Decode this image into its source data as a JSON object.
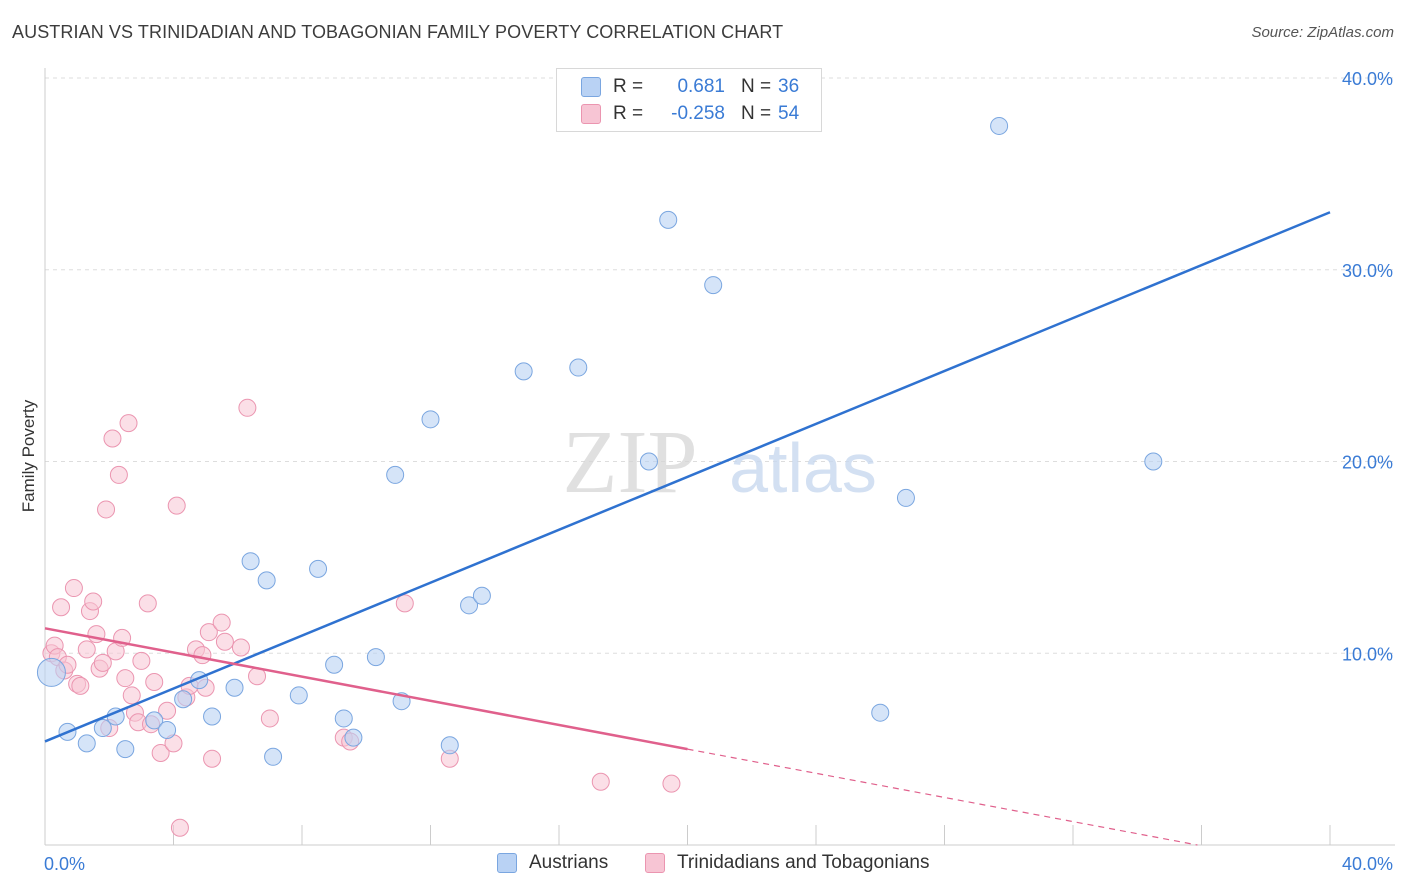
{
  "title": "AUSTRIAN VS TRINIDADIAN AND TOBAGONIAN FAMILY POVERTY CORRELATION CHART",
  "source": "Source: ZipAtlas.com",
  "watermark": {
    "zip": "ZIP",
    "atlas": "atlas"
  },
  "legend": {
    "austrians": {
      "r_label": "R =",
      "r_value": "0.681",
      "n_label": "N =",
      "n_value": "36"
    },
    "trinidadians": {
      "r_label": "R =",
      "r_value": "-0.258",
      "n_label": "N =",
      "n_value": "54"
    }
  },
  "bottom_legend": {
    "austrians": "Austrians",
    "trinidadians": "Trinidadians and Tobagonians"
  },
  "colors": {
    "austrians_fill": "#b9d2f4",
    "austrians_stroke": "#7aa6e0",
    "austrians_line": "#2f72d0",
    "trinidadians_fill": "#f7c5d4",
    "trinidadians_stroke": "#eb95b0",
    "trinidadians_line": "#e0608c",
    "axis_label": "#3a7bd5",
    "grid": "#dddddd"
  },
  "chart_data": {
    "type": "scatter",
    "title": "AUSTRIAN VS TRINIDADIAN AND TOBAGONIAN FAMILY POVERTY CORRELATION CHART",
    "xlabel": "",
    "ylabel": "Family Poverty",
    "xlim": [
      0,
      40
    ],
    "ylim": [
      0,
      40
    ],
    "x_tick_labels": [
      "0.0%",
      "40.0%"
    ],
    "y_ticks": [
      10,
      20,
      30,
      40
    ],
    "y_tick_labels": [
      "10.0%",
      "20.0%",
      "30.0%",
      "40.0%"
    ],
    "grid": "horizontal dashed",
    "legend_position": "top-center",
    "series": [
      {
        "name": "Austrians",
        "R": 0.681,
        "N": 36,
        "trend": {
          "x": [
            0,
            40
          ],
          "y": [
            5.4,
            33.0
          ]
        },
        "points": [
          [
            0.2,
            9.0
          ],
          [
            0.7,
            5.9
          ],
          [
            1.3,
            5.3
          ],
          [
            1.8,
            6.1
          ],
          [
            2.2,
            6.7
          ],
          [
            2.5,
            5.0
          ],
          [
            3.4,
            6.5
          ],
          [
            3.8,
            6.0
          ],
          [
            4.3,
            7.6
          ],
          [
            4.8,
            8.6
          ],
          [
            5.2,
            6.7
          ],
          [
            5.9,
            8.2
          ],
          [
            6.4,
            14.8
          ],
          [
            6.9,
            13.8
          ],
          [
            7.1,
            4.6
          ],
          [
            7.9,
            7.8
          ],
          [
            8.5,
            14.4
          ],
          [
            9.0,
            9.4
          ],
          [
            9.3,
            6.6
          ],
          [
            9.6,
            5.6
          ],
          [
            10.3,
            9.8
          ],
          [
            10.9,
            19.3
          ],
          [
            11.1,
            7.5
          ],
          [
            12.0,
            22.2
          ],
          [
            12.6,
            5.2
          ],
          [
            13.2,
            12.5
          ],
          [
            13.6,
            13.0
          ],
          [
            14.9,
            24.7
          ],
          [
            16.6,
            24.9
          ],
          [
            18.8,
            20.0
          ],
          [
            19.4,
            32.6
          ],
          [
            20.8,
            29.2
          ],
          [
            26.0,
            6.9
          ],
          [
            26.8,
            18.1
          ],
          [
            29.7,
            37.5
          ],
          [
            34.5,
            20.0
          ]
        ]
      },
      {
        "name": "Trinidadians and Tobagonians",
        "R": -0.258,
        "N": 54,
        "trend": {
          "x": [
            0,
            20
          ],
          "y": [
            11.3,
            5.0
          ]
        },
        "trend_extension": {
          "x": [
            20,
            40
          ],
          "y": [
            5.0,
            -1.3
          ]
        },
        "points": [
          [
            0.2,
            10.0
          ],
          [
            0.3,
            10.4
          ],
          [
            0.4,
            9.8
          ],
          [
            0.5,
            12.4
          ],
          [
            0.6,
            9.1
          ],
          [
            0.7,
            9.4
          ],
          [
            0.9,
            13.4
          ],
          [
            1.0,
            8.4
          ],
          [
            1.1,
            8.3
          ],
          [
            1.3,
            10.2
          ],
          [
            1.4,
            12.2
          ],
          [
            1.5,
            12.7
          ],
          [
            1.6,
            11.0
          ],
          [
            1.7,
            9.2
          ],
          [
            1.8,
            9.5
          ],
          [
            1.9,
            17.5
          ],
          [
            2.0,
            6.1
          ],
          [
            2.1,
            21.2
          ],
          [
            2.2,
            10.1
          ],
          [
            2.3,
            19.3
          ],
          [
            2.4,
            10.8
          ],
          [
            2.5,
            8.7
          ],
          [
            2.6,
            22.0
          ],
          [
            2.7,
            7.8
          ],
          [
            2.8,
            6.9
          ],
          [
            2.9,
            6.4
          ],
          [
            3.0,
            9.6
          ],
          [
            3.2,
            12.6
          ],
          [
            3.3,
            6.3
          ],
          [
            3.4,
            8.5
          ],
          [
            3.6,
            4.8
          ],
          [
            3.8,
            7.0
          ],
          [
            4.0,
            5.3
          ],
          [
            4.1,
            17.7
          ],
          [
            4.2,
            0.9
          ],
          [
            4.4,
            7.7
          ],
          [
            4.5,
            8.3
          ],
          [
            4.7,
            10.2
          ],
          [
            4.9,
            9.9
          ],
          [
            5.0,
            8.2
          ],
          [
            5.1,
            11.1
          ],
          [
            5.2,
            4.5
          ],
          [
            5.5,
            11.6
          ],
          [
            5.6,
            10.6
          ],
          [
            6.1,
            10.3
          ],
          [
            6.3,
            22.8
          ],
          [
            6.6,
            8.8
          ],
          [
            7.0,
            6.6
          ],
          [
            9.3,
            5.6
          ],
          [
            9.5,
            5.4
          ],
          [
            11.2,
            12.6
          ],
          [
            12.6,
            4.5
          ],
          [
            17.3,
            3.3
          ],
          [
            19.5,
            3.2
          ]
        ]
      }
    ]
  }
}
